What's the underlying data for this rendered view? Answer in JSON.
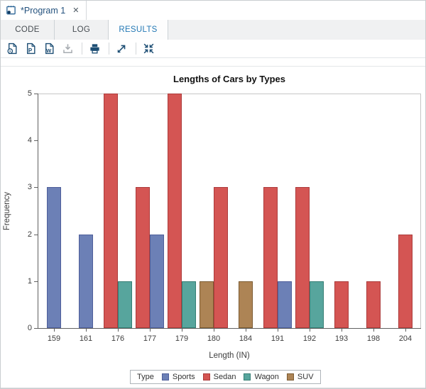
{
  "window_tab": {
    "title": "*Program 1",
    "close_glyph": "✕"
  },
  "tabs": [
    {
      "label": "CODE",
      "active": false
    },
    {
      "label": "LOG",
      "active": false
    },
    {
      "label": "RESULTS",
      "active": true
    }
  ],
  "toolbar": {
    "icons": [
      {
        "name": "results-html-icon",
        "glyph": ""
      },
      {
        "name": "results-pdf-icon",
        "glyph": "P"
      },
      {
        "name": "results-word-icon",
        "glyph": "W"
      },
      {
        "name": "download-icon",
        "glyph": "",
        "disabled": true
      },
      {
        "name": "print-icon",
        "glyph": ""
      },
      {
        "name": "open-in-new-window-icon",
        "glyph": ""
      },
      {
        "name": "collapse-view-icon",
        "glyph": ""
      }
    ]
  },
  "colors": {
    "accent_blue": "#2479b5",
    "tab_text": "#24527e",
    "icon_navy": "#1d4e74",
    "axis_gray": "#616161"
  },
  "chart_data": {
    "type": "bar",
    "title": "Lengths of Cars by Types",
    "xlabel": "Length (IN)",
    "ylabel": "Frequency",
    "ylim": [
      0,
      5
    ],
    "yticks": [
      0,
      1,
      2,
      3,
      4,
      5
    ],
    "grid": false,
    "legend_position": "bottom",
    "categories": [
      "159",
      "161",
      "176",
      "177",
      "179",
      "180",
      "184",
      "191",
      "192",
      "193",
      "198",
      "204"
    ],
    "series": [
      {
        "name": "Sports",
        "values": [
          3,
          2,
          null,
          2,
          null,
          null,
          null,
          1,
          null,
          null,
          null,
          null
        ]
      },
      {
        "name": "Sedan",
        "values": [
          null,
          null,
          5,
          3,
          5,
          3,
          null,
          3,
          3,
          1,
          1,
          2
        ]
      },
      {
        "name": "Wagon",
        "values": [
          null,
          null,
          1,
          null,
          1,
          null,
          null,
          null,
          1,
          null,
          null,
          null
        ]
      },
      {
        "name": "SUV",
        "values": [
          null,
          null,
          null,
          null,
          null,
          1,
          1,
          null,
          null,
          null,
          null,
          null
        ]
      }
    ],
    "groups": [
      {
        "category": "159",
        "bars": [
          {
            "type": "Sports",
            "value": 3
          }
        ]
      },
      {
        "category": "161",
        "bars": [
          {
            "type": "Sports",
            "value": 2
          }
        ]
      },
      {
        "category": "176",
        "bars": [
          {
            "type": "Sedan",
            "value": 5
          },
          {
            "type": "Wagon",
            "value": 1
          }
        ]
      },
      {
        "category": "177",
        "bars": [
          {
            "type": "Sedan",
            "value": 3
          },
          {
            "type": "Sports",
            "value": 2
          }
        ]
      },
      {
        "category": "179",
        "bars": [
          {
            "type": "Sedan",
            "value": 5
          },
          {
            "type": "Wagon",
            "value": 1
          }
        ]
      },
      {
        "category": "180",
        "bars": [
          {
            "type": "SUV",
            "value": 1
          },
          {
            "type": "Sedan",
            "value": 3
          }
        ]
      },
      {
        "category": "184",
        "bars": [
          {
            "type": "SUV",
            "value": 1
          }
        ]
      },
      {
        "category": "191",
        "bars": [
          {
            "type": "Sedan",
            "value": 3
          },
          {
            "type": "Sports",
            "value": 1
          }
        ]
      },
      {
        "category": "192",
        "bars": [
          {
            "type": "Sedan",
            "value": 3
          },
          {
            "type": "Wagon",
            "value": 1
          }
        ]
      },
      {
        "category": "193",
        "bars": [
          {
            "type": "Sedan",
            "value": 1
          }
        ]
      },
      {
        "category": "198",
        "bars": [
          {
            "type": "Sedan",
            "value": 1
          }
        ]
      },
      {
        "category": "204",
        "bars": [
          {
            "type": "Sedan",
            "value": 2
          }
        ]
      }
    ],
    "palette": {
      "Sports": {
        "fill": "#6C80B6",
        "stroke": "#4E5E9A"
      },
      "Sedan": {
        "fill": "#D45553",
        "stroke": "#AC3B3B"
      },
      "Wagon": {
        "fill": "#57A59D",
        "stroke": "#357E74"
      },
      "SUV": {
        "fill": "#AD8455",
        "stroke": "#7C5B31"
      }
    },
    "legend": {
      "title": "Type",
      "entries": [
        {
          "label": "Sports"
        },
        {
          "label": "Sedan"
        },
        {
          "label": "Wagon"
        },
        {
          "label": "SUV"
        }
      ]
    }
  }
}
